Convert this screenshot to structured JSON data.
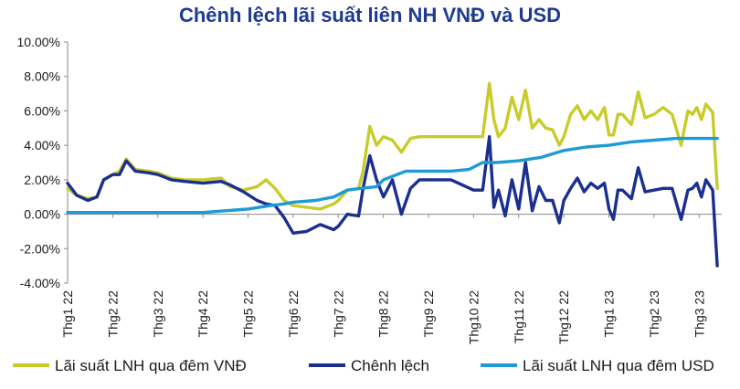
{
  "chart_data": {
    "type": "line",
    "title": "Chênh lệch lãi suất liên NH VNĐ và USD",
    "xlabel": "",
    "ylabel": "",
    "ylim": [
      -4,
      10
    ],
    "yticks": [
      -4,
      -2,
      0,
      2,
      4,
      6,
      8,
      10
    ],
    "ytick_labels": [
      "-4.00%",
      "-2.00%",
      "0.00%",
      "2.00%",
      "4.00%",
      "6.00%",
      "8.00%",
      "10.00%"
    ],
    "xlim": [
      0,
      14.5
    ],
    "xtick_positions": [
      0,
      1,
      2,
      3,
      4,
      5,
      6,
      7,
      8,
      9,
      10,
      11,
      12,
      13,
      14
    ],
    "xtick_labels": [
      "Thg1 22",
      "Thg2 22",
      "Thg3 22",
      "Thg4 22",
      "Thg5 22",
      "Thg6 22",
      "Thg7 22",
      "Thg8 22",
      "Thg9 22",
      "Thg10 22",
      "Thg11 22",
      "Thg12 22",
      "Thg1 23",
      "Thg2 23",
      "Thg3 23"
    ],
    "grid": false,
    "legend_position": "bottom",
    "series": [
      {
        "name": "Lãi suất LNH qua đêm VNĐ",
        "color": "#c8cc2a",
        "x": [
          0,
          0.2,
          0.45,
          0.65,
          0.8,
          1.0,
          1.15,
          1.3,
          1.5,
          1.8,
          2.0,
          2.3,
          2.6,
          3.0,
          3.4,
          3.6,
          3.75,
          3.9,
          4.2,
          4.4,
          4.6,
          4.8,
          5.0,
          5.3,
          5.6,
          5.9,
          6.0,
          6.2,
          6.45,
          6.55,
          6.7,
          6.85,
          7.0,
          7.2,
          7.4,
          7.6,
          7.8,
          8.0,
          8.5,
          9.0,
          9.2,
          9.35,
          9.45,
          9.55,
          9.7,
          9.85,
          10.0,
          10.15,
          10.3,
          10.45,
          10.6,
          10.75,
          10.9,
          11.0,
          11.15,
          11.3,
          11.45,
          11.6,
          11.75,
          11.9,
          12.0,
          12.1,
          12.2,
          12.3,
          12.5,
          12.65,
          12.8,
          13.0,
          13.2,
          13.4,
          13.6,
          13.75,
          13.85,
          13.95,
          14.05,
          14.15,
          14.3,
          14.4
        ],
        "y": [
          1.5,
          1.1,
          0.9,
          1.0,
          2.0,
          2.3,
          2.5,
          3.2,
          2.6,
          2.5,
          2.4,
          2.1,
          2.0,
          2.0,
          2.1,
          1.6,
          1.5,
          1.4,
          1.6,
          2.0,
          1.5,
          0.8,
          0.5,
          0.4,
          0.3,
          0.6,
          0.8,
          1.4,
          1.5,
          2.5,
          5.1,
          4.0,
          4.5,
          4.3,
          3.6,
          4.4,
          4.5,
          4.5,
          4.5,
          4.5,
          4.5,
          7.6,
          5.5,
          4.5,
          5.0,
          6.8,
          5.5,
          7.2,
          5.0,
          5.5,
          5.0,
          4.9,
          4.0,
          4.5,
          5.8,
          6.3,
          5.5,
          6.0,
          5.5,
          6.2,
          4.6,
          4.6,
          5.8,
          5.8,
          5.2,
          7.1,
          5.6,
          5.8,
          6.2,
          5.8,
          4.0,
          6.0,
          5.8,
          6.2,
          5.5,
          6.4,
          5.9,
          1.5
        ]
      },
      {
        "name": "Chênh lệch",
        "color": "#1a2f8f",
        "x": [
          0,
          0.2,
          0.45,
          0.65,
          0.8,
          1.0,
          1.15,
          1.3,
          1.5,
          1.8,
          2.0,
          2.3,
          2.6,
          3.0,
          3.4,
          3.6,
          3.75,
          3.9,
          4.2,
          4.4,
          4.6,
          4.8,
          5.0,
          5.3,
          5.6,
          5.9,
          6.0,
          6.2,
          6.45,
          6.55,
          6.7,
          6.85,
          7.0,
          7.2,
          7.4,
          7.6,
          7.8,
          8.0,
          8.5,
          9.0,
          9.2,
          9.35,
          9.45,
          9.55,
          9.7,
          9.85,
          10.0,
          10.15,
          10.3,
          10.45,
          10.6,
          10.75,
          10.9,
          11.0,
          11.15,
          11.3,
          11.45,
          11.6,
          11.75,
          11.9,
          12.0,
          12.1,
          12.2,
          12.3,
          12.5,
          12.65,
          12.8,
          13.0,
          13.2,
          13.4,
          13.6,
          13.75,
          13.85,
          13.95,
          14.05,
          14.15,
          14.3,
          14.4
        ],
        "y": [
          1.8,
          1.1,
          0.8,
          1.0,
          2.0,
          2.3,
          2.3,
          3.1,
          2.5,
          2.4,
          2.3,
          2.0,
          1.9,
          1.8,
          1.9,
          1.7,
          1.5,
          1.3,
          0.8,
          0.6,
          0.5,
          -0.2,
          -1.1,
          -1.0,
          -0.6,
          -0.9,
          -0.7,
          0.0,
          -0.1,
          1.5,
          3.4,
          2.0,
          1.0,
          2.0,
          0.0,
          1.5,
          2.0,
          2.0,
          2.0,
          1.4,
          1.4,
          4.5,
          0.4,
          1.4,
          -0.1,
          2.0,
          0.3,
          3.0,
          0.2,
          1.6,
          0.8,
          0.8,
          -0.5,
          0.8,
          1.5,
          2.1,
          1.3,
          1.8,
          1.5,
          1.8,
          0.3,
          -0.3,
          1.4,
          1.4,
          0.9,
          2.7,
          1.3,
          1.4,
          1.5,
          1.5,
          -0.3,
          1.4,
          1.5,
          1.8,
          1.0,
          2.0,
          1.4,
          -3.0
        ]
      },
      {
        "name": "Lãi suất LNH qua đêm USD",
        "color": "#1e9ad6",
        "x": [
          0,
          0.5,
          1.0,
          1.5,
          2.0,
          2.5,
          3.0,
          3.5,
          4.0,
          4.5,
          4.8,
          5.0,
          5.5,
          5.9,
          6.2,
          6.5,
          6.85,
          7.0,
          7.5,
          8.0,
          8.5,
          8.9,
          9.2,
          9.5,
          10.0,
          10.5,
          11.0,
          11.5,
          12.0,
          12.5,
          13.0,
          13.5,
          14.0,
          14.4
        ],
        "y": [
          0.1,
          0.1,
          0.1,
          0.1,
          0.1,
          0.1,
          0.1,
          0.2,
          0.3,
          0.5,
          0.6,
          0.7,
          0.8,
          1.0,
          1.4,
          1.5,
          1.6,
          2.0,
          2.5,
          2.5,
          2.5,
          2.6,
          3.0,
          3.0,
          3.1,
          3.3,
          3.7,
          3.9,
          4.0,
          4.2,
          4.3,
          4.4,
          4.4,
          4.4
        ]
      }
    ]
  }
}
